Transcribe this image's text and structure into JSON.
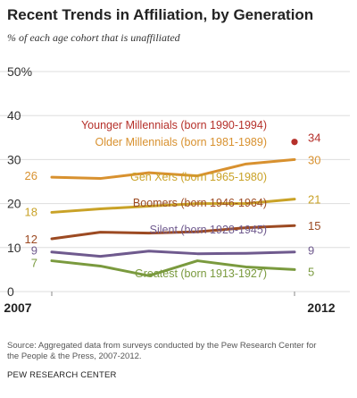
{
  "chart_data": {
    "type": "line",
    "title": "Recent Trends in Affiliation, by Generation",
    "subtitle": "% of each age cohort that is unaffiliated",
    "y_ticks": [
      "0",
      "10",
      "20",
      "30",
      "40",
      "50%"
    ],
    "ylim": [
      0,
      50
    ],
    "x": [
      2007,
      2008,
      2009,
      2010,
      2011,
      2012
    ],
    "x_tick_labels": [
      "2007",
      "2012"
    ],
    "grid": true,
    "series": [
      {
        "name": "Younger Millennials (born 1990-1994)",
        "color": "#b5302a",
        "marker": "dot",
        "values": [
          null,
          null,
          null,
          null,
          null,
          34
        ],
        "start_label": "",
        "end_label": "34"
      },
      {
        "name": "Older Millennials (born 1981-1989)",
        "color": "#d8912f",
        "values": [
          26,
          25.7,
          27,
          26.3,
          29,
          30
        ],
        "start_label": "26",
        "end_label": "30"
      },
      {
        "name": "Gen Xers (born 1965-1980)",
        "color": "#c9a227",
        "values": [
          18,
          18.8,
          19.4,
          20,
          20,
          21
        ],
        "start_label": "18",
        "end_label": "21"
      },
      {
        "name": "Boomers (born 1946-1964)",
        "color": "#9c4a22",
        "values": [
          12,
          13.5,
          13.3,
          13.6,
          14.5,
          15
        ],
        "start_label": "12",
        "end_label": "15"
      },
      {
        "name": "Silent (born 1928-1945)",
        "color": "#6f5a8e",
        "values": [
          9,
          8,
          9.2,
          8.6,
          8.7,
          9
        ],
        "start_label": "9",
        "end_label": "9"
      },
      {
        "name": "Greatest (born 1913-1927)",
        "color": "#7a9a3e",
        "values": [
          7,
          5.8,
          3.6,
          7,
          5.6,
          5
        ],
        "start_label": "7",
        "end_label": "5"
      }
    ]
  },
  "footer": {
    "source": "Source: Aggregated data from surveys conducted by the Pew Research Center for the People & the Press, 2007-2012.",
    "org": "PEW RESEARCH CENTER"
  }
}
